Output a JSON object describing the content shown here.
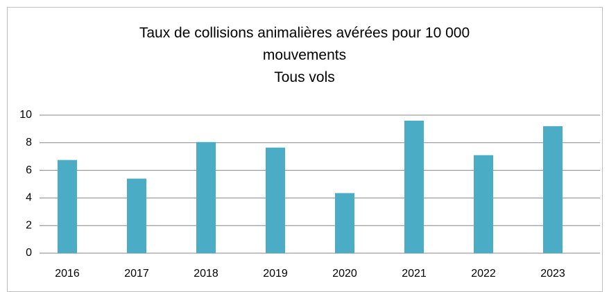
{
  "chart_data": {
    "type": "bar",
    "title": "Taux de collisions animalières avérées pour 10 000 mouvements",
    "subtitle": "Tous vols",
    "categories": [
      "2016",
      "2017",
      "2018",
      "2019",
      "2020",
      "2021",
      "2022",
      "2023"
    ],
    "values": [
      6.75,
      5.4,
      8.05,
      7.65,
      4.35,
      9.6,
      7.1,
      9.2
    ],
    "color": "#4bacc6",
    "ylim": [
      0,
      10
    ],
    "yticks": [
      0,
      2,
      4,
      6,
      8,
      10
    ],
    "grid": true
  }
}
